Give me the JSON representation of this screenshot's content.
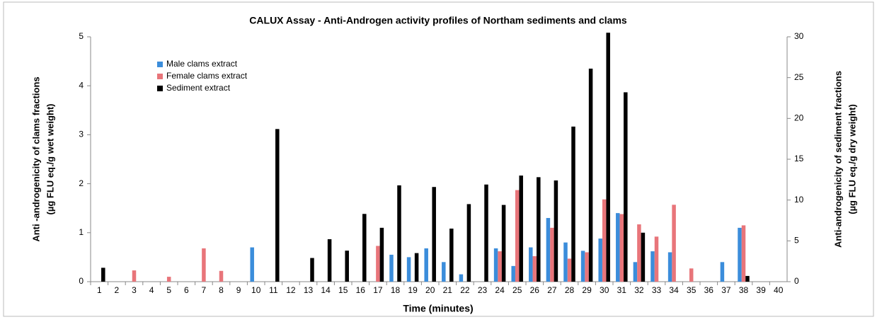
{
  "chart_data": {
    "type": "bar",
    "title": "CALUX Assay - Anti-Androgen activity profiles of Northam sediments and clams",
    "xlabel": "Time (minutes)",
    "ylabel": [
      "Anti -androgenicity of clams fractions",
      "(µg FLU eq./g wet weight)"
    ],
    "y2label": [
      "Anti-androgenicity of sediment fractions",
      "(µg FLU eq./g dry weight)"
    ],
    "categories": [
      1,
      2,
      3,
      4,
      5,
      6,
      7,
      8,
      9,
      10,
      11,
      12,
      13,
      14,
      15,
      16,
      17,
      18,
      19,
      20,
      21,
      22,
      23,
      24,
      25,
      26,
      27,
      28,
      29,
      30,
      31,
      32,
      33,
      34,
      35,
      36,
      37,
      38,
      39,
      40
    ],
    "series": [
      {
        "name": "Male clams extract",
        "color": "#3b8ddb",
        "values": [
          0,
          0,
          0,
          0,
          0,
          0,
          0,
          0,
          0,
          0.7,
          0,
          0,
          0,
          0,
          0,
          0,
          0,
          0.55,
          0.5,
          0.68,
          0.4,
          0.15,
          0,
          0.68,
          0.32,
          0.7,
          1.3,
          0.8,
          0.63,
          0.88,
          1.4,
          0.4,
          0.62,
          0.6,
          0,
          0,
          0.4,
          1.1,
          0,
          0
        ]
      },
      {
        "name": "Female clams extract",
        "color": "#e8757a",
        "values": [
          0,
          0,
          0.23,
          0,
          0.1,
          0,
          0.68,
          0.22,
          0,
          0,
          0,
          0,
          0,
          0,
          0,
          0,
          0.73,
          0,
          0,
          0,
          0,
          0,
          0,
          0.62,
          1.87,
          0.52,
          1.1,
          0.47,
          0.6,
          1.68,
          1.38,
          1.17,
          0.92,
          1.57,
          0.27,
          0,
          0,
          1.15,
          0,
          0
        ]
      },
      {
        "name": "Sediment extract",
        "color": "#000000",
        "axis": "y2",
        "values": [
          1.7,
          0,
          0,
          0,
          0,
          0,
          0,
          0,
          0,
          0,
          18.7,
          0,
          2.9,
          5.2,
          3.8,
          8.3,
          6.6,
          11.8,
          3.5,
          11.6,
          6.5,
          9.5,
          11.9,
          9.4,
          13,
          12.8,
          12.4,
          19,
          26.1,
          30.5,
          23.2,
          6,
          0,
          0,
          0,
          0,
          0,
          0.7,
          0,
          0
        ]
      }
    ],
    "ylim": [
      0,
      5
    ],
    "yticks": [
      0,
      1,
      2,
      3,
      4,
      5
    ],
    "y2lim": [
      0,
      30
    ],
    "y2ticks": [
      0,
      5,
      10,
      15,
      20,
      25,
      30
    ],
    "legend": "upper left"
  }
}
